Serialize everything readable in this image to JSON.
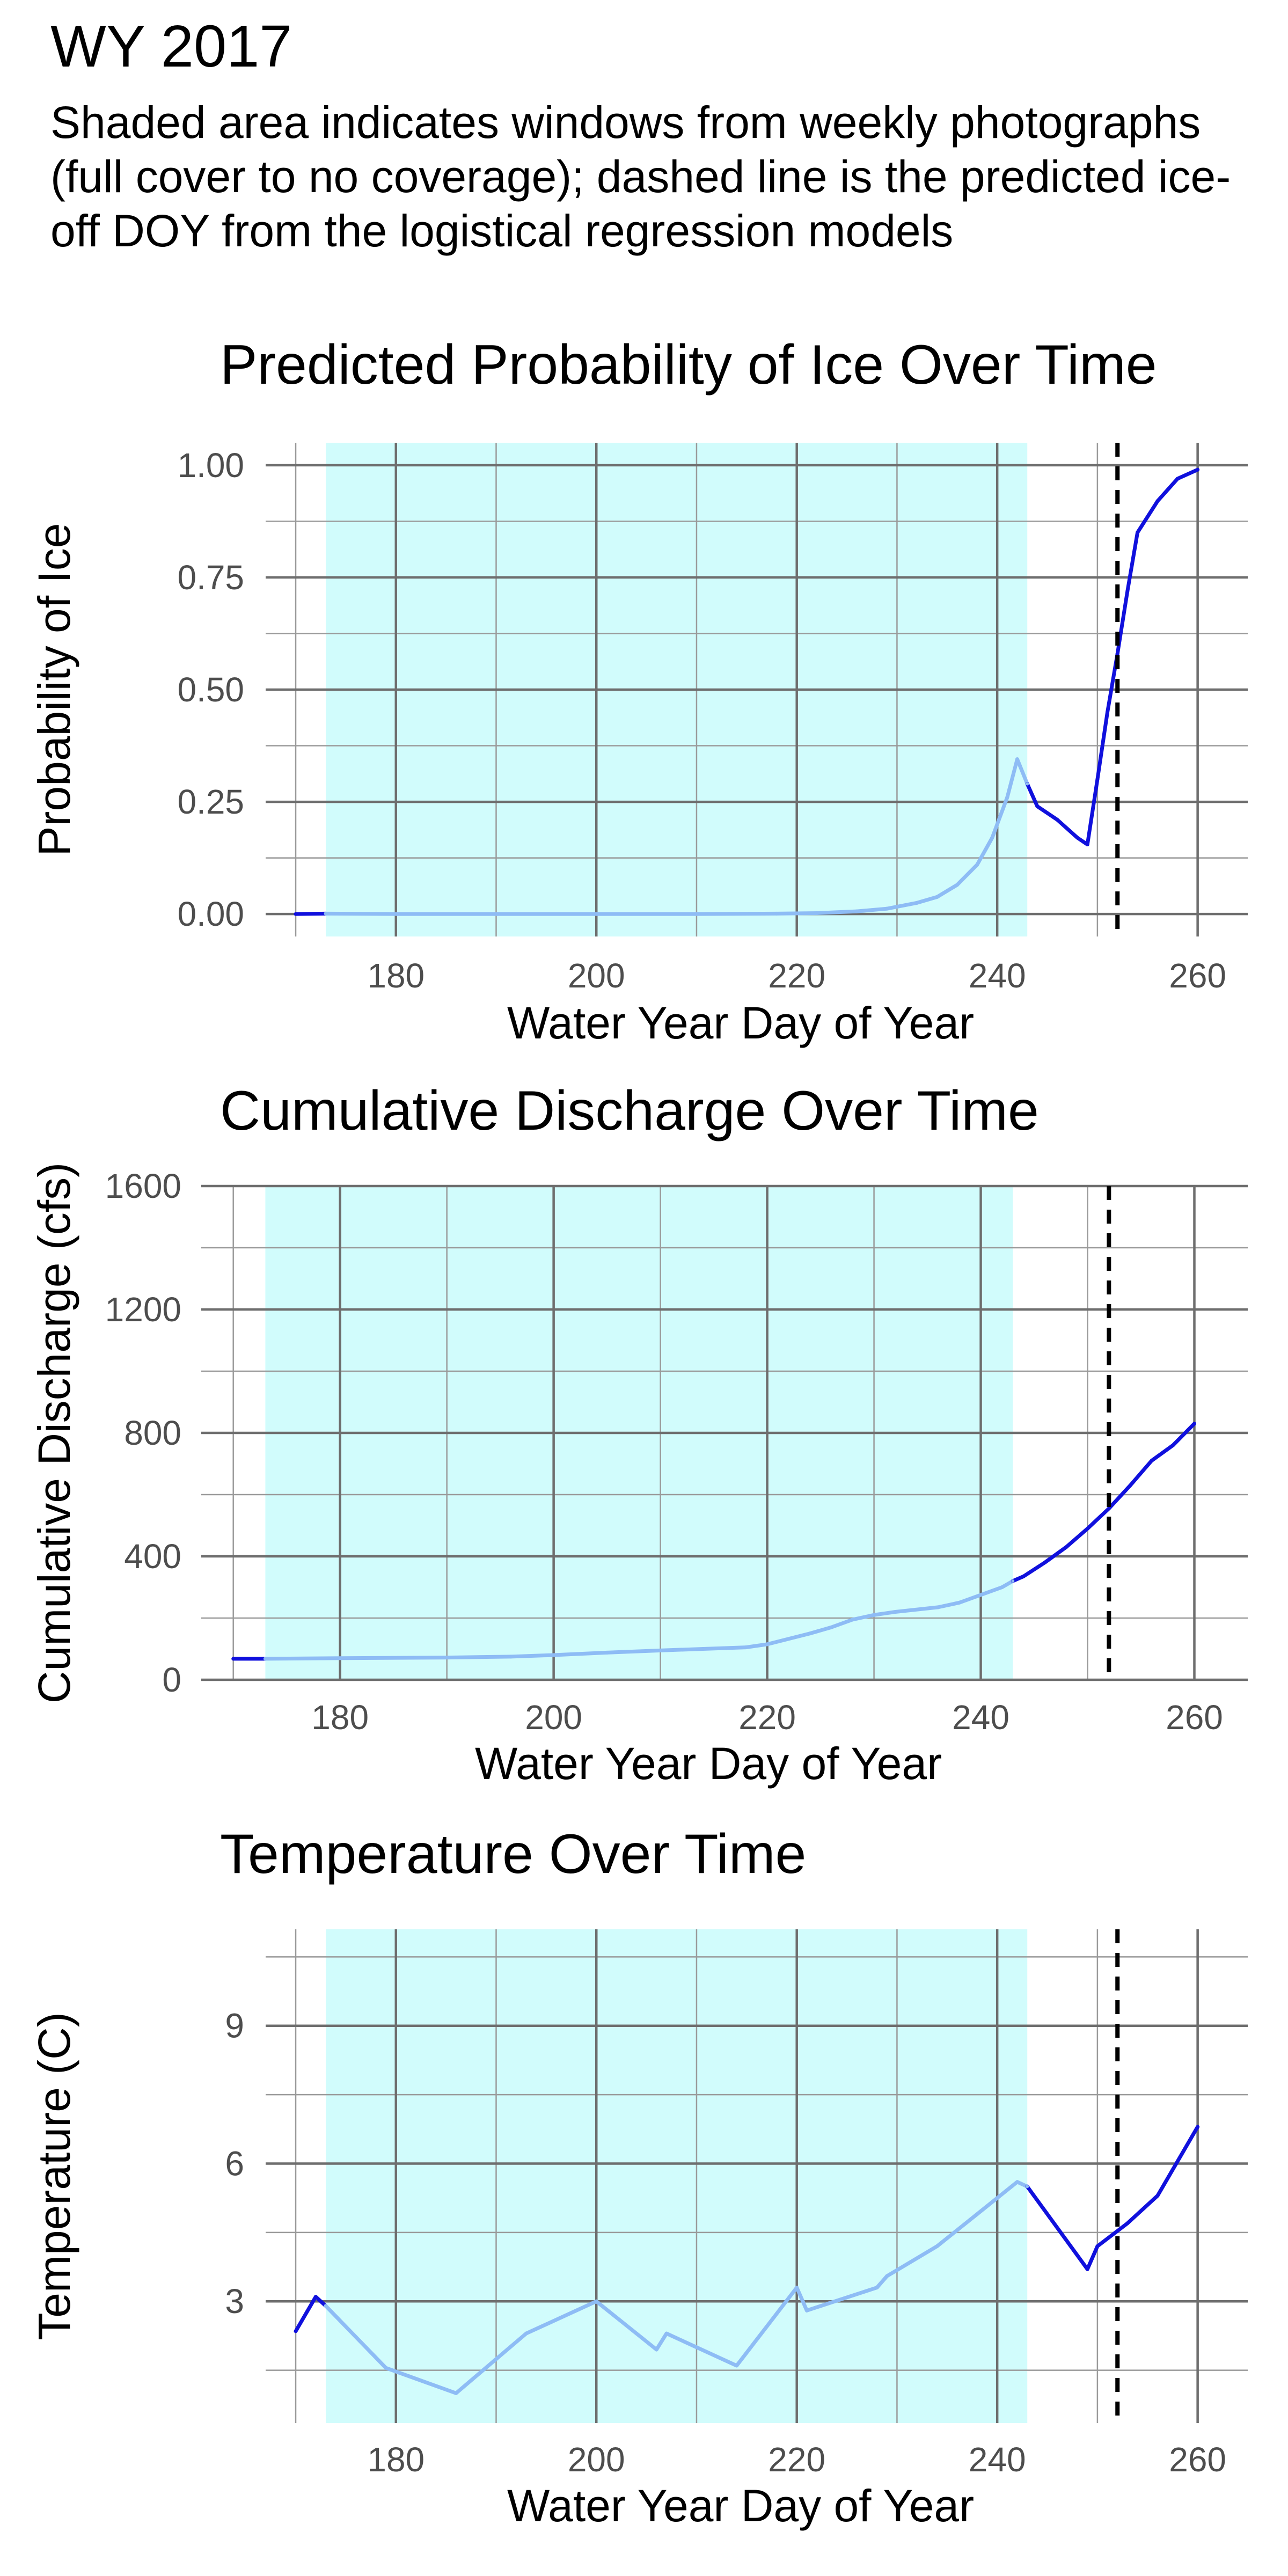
{
  "header": {
    "title": "WY 2017",
    "subtitle": "Shaded area indicates windows from weekly photographs (full cover to no coverage); dashed line is the predicted ice-off DOY from the logistical regression models"
  },
  "colors": {
    "shade": "#d1fcfc",
    "window_line": "#8ebcf5",
    "outside_line": "#1010dd",
    "grid_major": "#6e6e6e",
    "grid_minor": "#9a9a9a",
    "dashed_line": "#000000"
  },
  "chart_data": [
    {
      "type": "line",
      "title": "Predicted Probability of Ice Over Time",
      "xlabel": "Water Year Day of Year",
      "ylabel": "Probability of Ice",
      "xlim": [
        167,
        265
      ],
      "ylim": [
        -0.05,
        1.05
      ],
      "xticks": [
        180,
        200,
        220,
        240,
        260
      ],
      "xtick_labels": [
        "180",
        "200",
        "220",
        "240",
        "260"
      ],
      "yticks": [
        0,
        0.25,
        0.5,
        0.75,
        1.0
      ],
      "ytick_labels": [
        "0.00",
        "0.25",
        "0.50",
        "0.75",
        "1.00"
      ],
      "shaded_window": [
        173,
        243
      ],
      "dashed_x": 252,
      "grid": true,
      "points": [
        [
          170,
          0.0
        ],
        [
          173,
          0.001
        ],
        [
          180,
          0.0
        ],
        [
          190,
          0.0
        ],
        [
          200,
          0.0
        ],
        [
          210,
          0.0
        ],
        [
          218,
          0.001
        ],
        [
          222,
          0.002
        ],
        [
          226,
          0.006
        ],
        [
          229,
          0.012
        ],
        [
          232,
          0.025
        ],
        [
          234,
          0.038
        ],
        [
          236,
          0.065
        ],
        [
          238,
          0.11
        ],
        [
          239.5,
          0.17
        ],
        [
          241,
          0.26
        ],
        [
          242,
          0.345
        ],
        [
          243,
          0.29
        ],
        [
          244,
          0.24
        ],
        [
          246,
          0.21
        ],
        [
          248,
          0.17
        ],
        [
          249,
          0.155
        ],
        [
          250,
          0.3
        ],
        [
          251,
          0.45
        ],
        [
          252,
          0.58
        ],
        [
          253,
          0.72
        ],
        [
          254,
          0.85
        ],
        [
          256,
          0.92
        ],
        [
          258,
          0.97
        ],
        [
          260,
          0.99
        ]
      ]
    },
    {
      "type": "line",
      "title": "Cumulative Discharge Over Time",
      "xlabel": "Water Year Day of Year",
      "ylabel": "Cumulative Discharge (cfs)",
      "xlim": [
        167,
        265
      ],
      "ylim": [
        0,
        1600
      ],
      "xticks": [
        180,
        200,
        220,
        240,
        260
      ],
      "xtick_labels": [
        "180",
        "200",
        "220",
        "240",
        "260"
      ],
      "yticks": [
        0,
        400,
        800,
        1200,
        1600
      ],
      "ytick_labels": [
        "0",
        "400",
        "800",
        "1200",
        "1600"
      ],
      "shaded_window": [
        173,
        243
      ],
      "dashed_x": 252,
      "grid": true,
      "points": [
        [
          170,
          68
        ],
        [
          173,
          68
        ],
        [
          180,
          70
        ],
        [
          190,
          72
        ],
        [
          196,
          75
        ],
        [
          200,
          80
        ],
        [
          205,
          88
        ],
        [
          210,
          95
        ],
        [
          214,
          100
        ],
        [
          218,
          105
        ],
        [
          220,
          115
        ],
        [
          224,
          150
        ],
        [
          226,
          170
        ],
        [
          228,
          195
        ],
        [
          230,
          210
        ],
        [
          232,
          220
        ],
        [
          236,
          235
        ],
        [
          238,
          250
        ],
        [
          240,
          275
        ],
        [
          242,
          300
        ],
        [
          243,
          320
        ],
        [
          244,
          335
        ],
        [
          246,
          380
        ],
        [
          248,
          430
        ],
        [
          250,
          490
        ],
        [
          252,
          555
        ],
        [
          254,
          630
        ],
        [
          256,
          710
        ],
        [
          258,
          760
        ],
        [
          260,
          830
        ]
      ]
    },
    {
      "type": "line",
      "title": "Temperature Over Time",
      "xlabel": "Water Year Day of Year",
      "ylabel": "Temperature (C)",
      "xlim": [
        167,
        265
      ],
      "ylim": [
        0.35,
        11.1
      ],
      "xticks": [
        180,
        200,
        220,
        240,
        260
      ],
      "xtick_labels": [
        "180",
        "200",
        "220",
        "240",
        "260"
      ],
      "yticks": [
        3,
        6,
        9
      ],
      "ytick_labels": [
        "3",
        "6",
        "9"
      ],
      "shaded_window": [
        173,
        243
      ],
      "dashed_x": 252,
      "grid": true,
      "points": [
        [
          170,
          2.35
        ],
        [
          172,
          3.1
        ],
        [
          173,
          2.9
        ],
        [
          179,
          1.55
        ],
        [
          186,
          1.0
        ],
        [
          193,
          2.3
        ],
        [
          200,
          3.0
        ],
        [
          206,
          1.95
        ],
        [
          207,
          2.3
        ],
        [
          214,
          1.6
        ],
        [
          220,
          3.3
        ],
        [
          221,
          2.8
        ],
        [
          228,
          3.3
        ],
        [
          229,
          3.55
        ],
        [
          234,
          4.2
        ],
        [
          238,
          4.9
        ],
        [
          242,
          5.6
        ],
        [
          243,
          5.5
        ],
        [
          246,
          4.6
        ],
        [
          249,
          3.7
        ],
        [
          250,
          4.2
        ],
        [
          253,
          4.7
        ],
        [
          256,
          5.3
        ],
        [
          260,
          6.8
        ]
      ]
    }
  ]
}
